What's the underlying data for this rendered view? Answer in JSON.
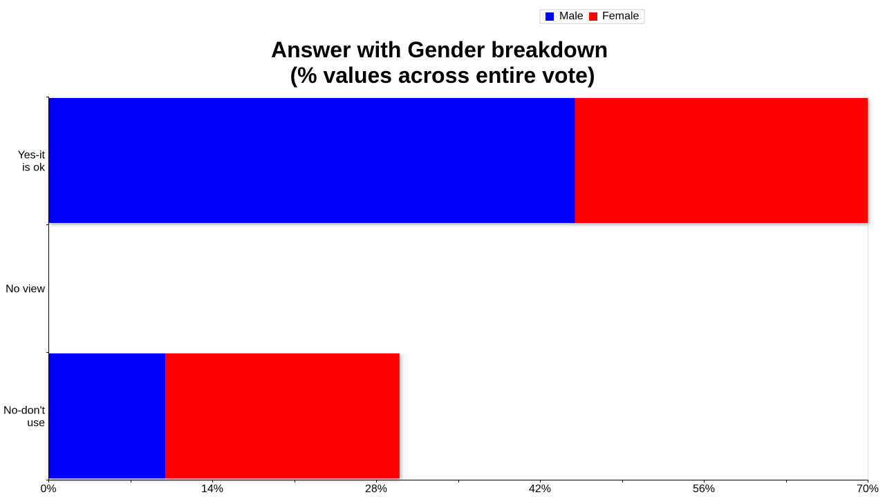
{
  "chart_data": {
    "type": "bar",
    "orientation": "horizontal",
    "stacked": true,
    "title": "Answer with Gender breakdown\n(% values across entire vote)",
    "xlabel": "",
    "ylabel": "",
    "categories": [
      "Yes-it is ok",
      "No view",
      "No-don't use"
    ],
    "series": [
      {
        "name": "Male",
        "values": [
          45,
          0,
          10
        ],
        "color": "#0000ff"
      },
      {
        "name": "Female",
        "values": [
          25,
          0,
          20
        ],
        "color": "#ff0000"
      }
    ],
    "xlim": [
      0,
      70
    ],
    "x_ticks": [
      "0%",
      "14%",
      "28%",
      "42%",
      "56%",
      "70%"
    ],
    "grid": false,
    "legend_position": "top-right"
  }
}
